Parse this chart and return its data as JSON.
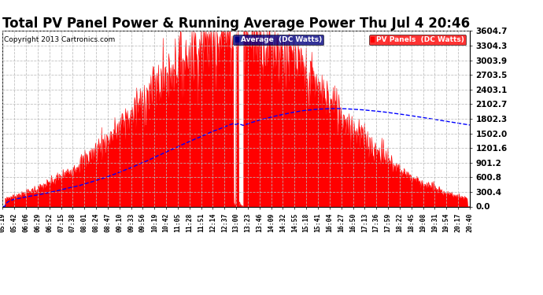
{
  "title": "Total PV Panel Power & Running Average Power Thu Jul 4 20:46",
  "copyright": "Copyright 2013 Cartronics.com",
  "ylabel_values": [
    0.0,
    300.4,
    600.8,
    901.2,
    1201.6,
    1502.0,
    1802.3,
    2102.7,
    2403.1,
    2703.5,
    3003.9,
    3304.3,
    3604.7
  ],
  "ymax": 3604.7,
  "ymin": 0.0,
  "legend_avg_label": "Average  (DC Watts)",
  "legend_pv_label": "PV Panels  (DC Watts)",
  "pv_color": "#FF0000",
  "avg_color": "#0000FF",
  "avg_bg_color": "#000080",
  "pv_bg_color": "#FF0000",
  "bg_color": "#FFFFFF",
  "grid_color": "#BBBBBB",
  "title_fontsize": 12,
  "copyright_fontsize": 6.5,
  "tick_fontsize": 5.8,
  "ytick_fontsize": 7.5,
  "time_labels": [
    "05:19",
    "05:42",
    "06:06",
    "06:29",
    "06:52",
    "07:15",
    "07:38",
    "08:01",
    "08:24",
    "08:47",
    "09:10",
    "09:33",
    "09:56",
    "10:19",
    "10:42",
    "11:05",
    "11:28",
    "11:51",
    "12:14",
    "12:37",
    "13:00",
    "13:23",
    "13:46",
    "14:09",
    "14:32",
    "14:55",
    "15:18",
    "15:41",
    "16:04",
    "16:27",
    "16:50",
    "17:13",
    "17:36",
    "17:59",
    "18:22",
    "18:45",
    "19:08",
    "19:31",
    "19:54",
    "20:17",
    "20:40"
  ]
}
